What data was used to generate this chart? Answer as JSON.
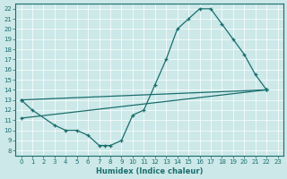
{
  "xlabel": "Humidex (Indice chaleur)",
  "bg_color": "#cce8e8",
  "line_color": "#1a6e6e",
  "xlim": [
    -0.5,
    23.5
  ],
  "ylim": [
    7.5,
    22.5
  ],
  "yticks": [
    8,
    9,
    10,
    11,
    12,
    13,
    14,
    15,
    16,
    17,
    18,
    19,
    20,
    21,
    22
  ],
  "xticks": [
    0,
    1,
    2,
    3,
    4,
    5,
    6,
    7,
    8,
    9,
    10,
    11,
    12,
    13,
    14,
    15,
    16,
    17,
    18,
    19,
    20,
    21,
    22,
    23
  ],
  "curve1_x": [
    0,
    1,
    3,
    4,
    5,
    6,
    7,
    7.5,
    8,
    9,
    10,
    11,
    12,
    13,
    14,
    15,
    16,
    17,
    18,
    19,
    20,
    21,
    22
  ],
  "curve1_y": [
    13,
    12,
    10.5,
    10,
    10,
    9.5,
    8.5,
    8.5,
    8.5,
    9,
    11.5,
    12,
    14.5,
    17,
    20,
    21,
    22,
    22,
    20.5,
    19,
    17.5,
    15.5,
    14
  ],
  "curve2_x": [
    0,
    22
  ],
  "curve2_y": [
    13.0,
    14.0
  ],
  "curve3_x": [
    0,
    22
  ],
  "curve3_y": [
    11.2,
    14.0
  ],
  "grid_color": "#ffffff"
}
